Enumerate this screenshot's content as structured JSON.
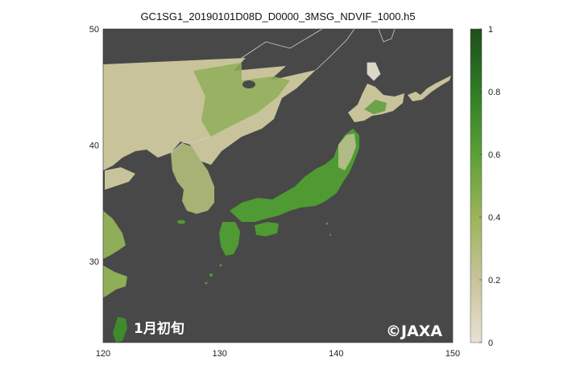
{
  "title": "GC1SG1_20190101D08D_D0000_3MSG_NDVIF_1000.h5",
  "overlay_label": "1月初旬",
  "credit": "©JAXA",
  "map_extent": {
    "lon": [
      120,
      150
    ],
    "lat": [
      23,
      50
    ]
  },
  "x_ticks": [
    120,
    130,
    140,
    150
  ],
  "y_ticks": [
    30,
    40,
    50
  ],
  "colorbar": {
    "range": [
      0,
      1
    ],
    "ticks": [
      0,
      0.2,
      0.4,
      0.6,
      0.8,
      1
    ],
    "tick_labels": [
      "0",
      "0.2",
      "0.4",
      "0.6",
      "0.8",
      "1"
    ],
    "colors": [
      "#e9e1d4",
      "#c9c39a",
      "#9cb45a",
      "#5da035",
      "#2e7d26",
      "#1f4d1a"
    ]
  },
  "colors": {
    "ocean": "#484848",
    "land_low": "#c8c39a",
    "land_green": "#4f9a33",
    "border": "#cfcfcf"
  }
}
